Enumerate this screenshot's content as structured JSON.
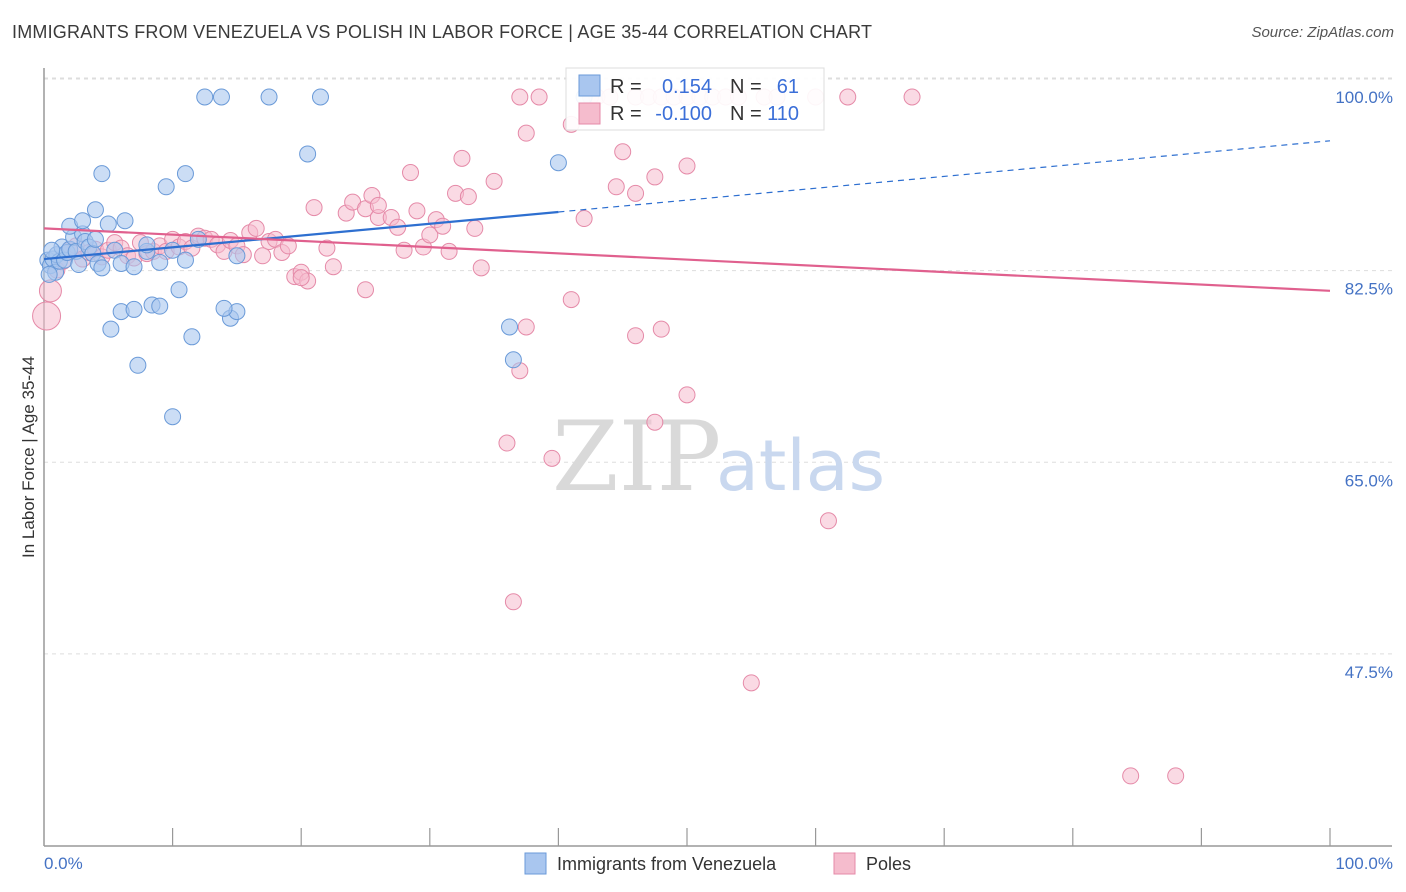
{
  "header": {
    "title": "IMMIGRANTS FROM VENEZUELA VS POLISH IN LABOR FORCE | AGE 35-44 CORRELATION CHART",
    "source": "Source: ZipAtlas.com"
  },
  "watermark": {
    "part1": "ZIP",
    "part2": "atlas"
  },
  "colors": {
    "blue_fill": "#a9c6ef",
    "blue_stroke": "#6a9ad8",
    "blue_line": "#2e6fd0",
    "pink_fill": "#f5bccd",
    "pink_stroke": "#e58aa8",
    "pink_line": "#e0608e",
    "axis_label": "#4472c4",
    "grid": "#dddddd"
  },
  "stats_box": {
    "rows": [
      {
        "r_label": "R =",
        "r_value": "0.154",
        "n_label": "N =",
        "n_value": "61"
      },
      {
        "r_label": "R =",
        "r_value": "-0.100",
        "n_label": "N =",
        "n_value": "110"
      }
    ]
  },
  "chart_data": {
    "type": "scatter",
    "title": "IMMIGRANTS FROM VENEZUELA VS POLISH IN LABOR FORCE | AGE 35-44 CORRELATION CHART",
    "xlabel": "",
    "ylabel": "In Labor Force | Age 35-44",
    "x_tick_labels": [
      "0.0%",
      "100.0%"
    ],
    "y_tick_labels": [
      "100.0%",
      "82.5%",
      "65.0%",
      "47.5%"
    ],
    "y_ticks": [
      100.0,
      82.5,
      65.0,
      47.5
    ],
    "xlim": [
      0,
      100
    ],
    "ylim": [
      35,
      102
    ],
    "grid": "horizontal dashed",
    "legend_position": "bottom-center",
    "series": [
      {
        "name": "Immigrants from Venezuela",
        "color": "#a9c6ef",
        "R": 0.154,
        "N": 61,
        "trend": {
          "x0": 0,
          "y0": 85.2,
          "x1": 40,
          "y1": 89.5,
          "dashed_to_x": 100,
          "dashed_to_y": 96.0
        },
        "points": [
          [
            0.3,
            85.1
          ],
          [
            0.5,
            84.6
          ],
          [
            0.7,
            85.2
          ],
          [
            0.9,
            84.0
          ],
          [
            1.0,
            85.6
          ],
          [
            1.2,
            85.0
          ],
          [
            1.4,
            86.3
          ],
          [
            1.6,
            85.1
          ],
          [
            1.8,
            85.8
          ],
          [
            2.0,
            86.1
          ],
          [
            2.3,
            87.2
          ],
          [
            2.5,
            85.9
          ],
          [
            2.7,
            84.7
          ],
          [
            3.0,
            87.5
          ],
          [
            3.2,
            86.8
          ],
          [
            3.5,
            86.3
          ],
          [
            3.8,
            85.7
          ],
          [
            4.0,
            87.0
          ],
          [
            4.2,
            84.8
          ],
          [
            4.5,
            84.4
          ],
          [
            5.0,
            88.4
          ],
          [
            5.5,
            86.0
          ],
          [
            6.0,
            84.8
          ],
          [
            7.0,
            84.5
          ],
          [
            8.0,
            85.9
          ],
          [
            9.0,
            84.9
          ],
          [
            10.0,
            86.0
          ],
          [
            11.0,
            85.1
          ],
          [
            12.0,
            87.0
          ],
          [
            2.0,
            88.2
          ],
          [
            3.0,
            88.7
          ],
          [
            4.0,
            89.7
          ],
          [
            4.5,
            93.0
          ],
          [
            6.3,
            88.7
          ],
          [
            8.0,
            86.5
          ],
          [
            9.5,
            91.8
          ],
          [
            11.0,
            93.0
          ],
          [
            6.0,
            80.4
          ],
          [
            7.0,
            80.6
          ],
          [
            5.2,
            78.8
          ],
          [
            8.4,
            81.0
          ],
          [
            9.0,
            80.9
          ],
          [
            10.5,
            82.4
          ],
          [
            14.5,
            79.8
          ],
          [
            15.0,
            80.4
          ],
          [
            11.5,
            78.1
          ],
          [
            7.3,
            75.5
          ],
          [
            10.0,
            70.8
          ],
          [
            14.0,
            80.7
          ],
          [
            20.5,
            94.8
          ],
          [
            40.0,
            94.0
          ],
          [
            12.5,
            100.0
          ],
          [
            13.8,
            100.0
          ],
          [
            17.5,
            100.0
          ],
          [
            21.5,
            100.0
          ],
          [
            36.2,
            79.0
          ],
          [
            36.5,
            76.0
          ],
          [
            42.0,
            100.0
          ],
          [
            15.0,
            85.5
          ],
          [
            0.4,
            83.8
          ],
          [
            0.6,
            86.0
          ]
        ]
      },
      {
        "name": "Poles",
        "color": "#f5bccd",
        "R": -0.1,
        "N": 110,
        "trend": {
          "x0": 0,
          "y0": 88.0,
          "x1": 100,
          "y1": 82.3
        },
        "points": [
          [
            0.2,
            80.0
          ],
          [
            0.5,
            82.3
          ],
          [
            1.0,
            84.2
          ],
          [
            1.5,
            85.0
          ],
          [
            2.0,
            86.0
          ],
          [
            2.5,
            86.4
          ],
          [
            3.0,
            85.2
          ],
          [
            3.5,
            85.8
          ],
          [
            4.0,
            86.1
          ],
          [
            4.5,
            85.4
          ],
          [
            5.0,
            86.0
          ],
          [
            5.5,
            86.7
          ],
          [
            6.0,
            86.2
          ],
          [
            6.5,
            85.5
          ],
          [
            7.0,
            85.3
          ],
          [
            7.5,
            86.7
          ],
          [
            8.0,
            85.7
          ],
          [
            8.5,
            85.9
          ],
          [
            9.0,
            86.4
          ],
          [
            9.5,
            85.9
          ],
          [
            10.0,
            87.0
          ],
          [
            10.5,
            86.3
          ],
          [
            11.0,
            86.8
          ],
          [
            11.5,
            86.2
          ],
          [
            12.0,
            87.3
          ],
          [
            12.5,
            87.1
          ],
          [
            13.0,
            87.0
          ],
          [
            13.5,
            86.5
          ],
          [
            14.0,
            85.9
          ],
          [
            14.5,
            86.9
          ],
          [
            15.0,
            86.4
          ],
          [
            15.5,
            85.6
          ],
          [
            16.0,
            87.6
          ],
          [
            16.5,
            88.0
          ],
          [
            17.0,
            85.5
          ],
          [
            17.5,
            86.8
          ],
          [
            18.0,
            87.0
          ],
          [
            18.5,
            85.8
          ],
          [
            19.0,
            86.4
          ],
          [
            19.5,
            83.6
          ],
          [
            20.0,
            84.0
          ],
          [
            20.5,
            83.2
          ],
          [
            21.0,
            89.9
          ],
          [
            22.0,
            86.2
          ],
          [
            22.5,
            84.5
          ],
          [
            23.5,
            89.4
          ],
          [
            24.0,
            90.4
          ],
          [
            25.0,
            89.8
          ],
          [
            25.5,
            91.0
          ],
          [
            26.0,
            89.0
          ],
          [
            27.0,
            89.0
          ],
          [
            27.5,
            88.1
          ],
          [
            28.0,
            86.0
          ],
          [
            29.0,
            89.6
          ],
          [
            29.5,
            86.3
          ],
          [
            30.0,
            87.4
          ],
          [
            30.5,
            88.8
          ],
          [
            31.0,
            88.2
          ],
          [
            31.5,
            85.9
          ],
          [
            32.0,
            91.2
          ],
          [
            33.0,
            90.9
          ],
          [
            33.5,
            88.0
          ],
          [
            34.0,
            84.4
          ],
          [
            35.0,
            92.3
          ],
          [
            28.5,
            93.1
          ],
          [
            32.5,
            94.4
          ],
          [
            26.0,
            90.1
          ],
          [
            25.0,
            82.4
          ],
          [
            37.0,
            100.0
          ],
          [
            37.5,
            96.7
          ],
          [
            38.5,
            100.0
          ],
          [
            41.0,
            97.5
          ],
          [
            42.5,
            100.0
          ],
          [
            43.0,
            100.0
          ],
          [
            44.0,
            100.0
          ],
          [
            45.0,
            95.0
          ],
          [
            46.0,
            100.0
          ],
          [
            47.0,
            100.0
          ],
          [
            48.0,
            100.0
          ],
          [
            49.0,
            100.0
          ],
          [
            50.0,
            100.0
          ],
          [
            51.0,
            100.0
          ],
          [
            52.0,
            100.0
          ],
          [
            53.0,
            100.0
          ],
          [
            54.0,
            100.0
          ],
          [
            56.0,
            100.0
          ],
          [
            57.0,
            100.0
          ],
          [
            60.0,
            100.0
          ],
          [
            62.5,
            100.0
          ],
          [
            67.5,
            100.0
          ],
          [
            44.5,
            91.8
          ],
          [
            46.0,
            91.2
          ],
          [
            47.5,
            92.7
          ],
          [
            50.0,
            93.7
          ],
          [
            42.0,
            88.9
          ],
          [
            41.0,
            81.5
          ],
          [
            46.0,
            78.2
          ],
          [
            48.0,
            78.8
          ],
          [
            37.5,
            79.0
          ],
          [
            37.0,
            75.0
          ],
          [
            36.0,
            68.4
          ],
          [
            50.0,
            72.8
          ],
          [
            47.5,
            70.3
          ],
          [
            39.5,
            67.0
          ],
          [
            61.0,
            61.3
          ],
          [
            36.5,
            53.9
          ],
          [
            55.0,
            46.5
          ],
          [
            84.5,
            38.0
          ],
          [
            88.0,
            38.0
          ],
          [
            20.0,
            83.5
          ]
        ]
      }
    ]
  },
  "legend": {
    "items": [
      {
        "label": "Immigrants from Venezuela",
        "color": "#a9c6ef"
      },
      {
        "label": "Poles",
        "color": "#f5bccd"
      }
    ]
  }
}
